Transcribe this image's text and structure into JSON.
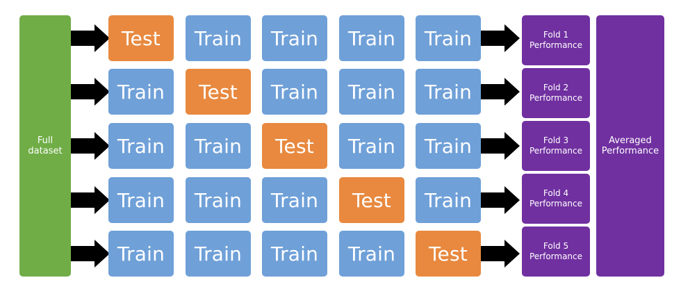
{
  "diagram": {
    "full_dataset_label": "Full\ndataset",
    "averaged_label": "Averaged\nPerformance",
    "colors": {
      "dataset": "#70ad47",
      "train": "#6fa0d8",
      "test": "#e8893f",
      "performance": "#7030a0",
      "arrow": "#000000"
    },
    "folds": [
      {
        "cells": [
          "Test",
          "Train",
          "Train",
          "Train",
          "Train"
        ],
        "performance_label": "Fold 1\nPerformance"
      },
      {
        "cells": [
          "Train",
          "Test",
          "Train",
          "Train",
          "Train"
        ],
        "performance_label": "Fold 2\nPerformance"
      },
      {
        "cells": [
          "Train",
          "Train",
          "Test",
          "Train",
          "Train"
        ],
        "performance_label": "Fold 3\nPerformance"
      },
      {
        "cells": [
          "Train",
          "Train",
          "Train",
          "Test",
          "Train"
        ],
        "performance_label": "Fold 4\nPerformance"
      },
      {
        "cells": [
          "Train",
          "Train",
          "Train",
          "Train",
          "Test"
        ],
        "performance_label": "Fold 5\nPerformance"
      }
    ]
  }
}
